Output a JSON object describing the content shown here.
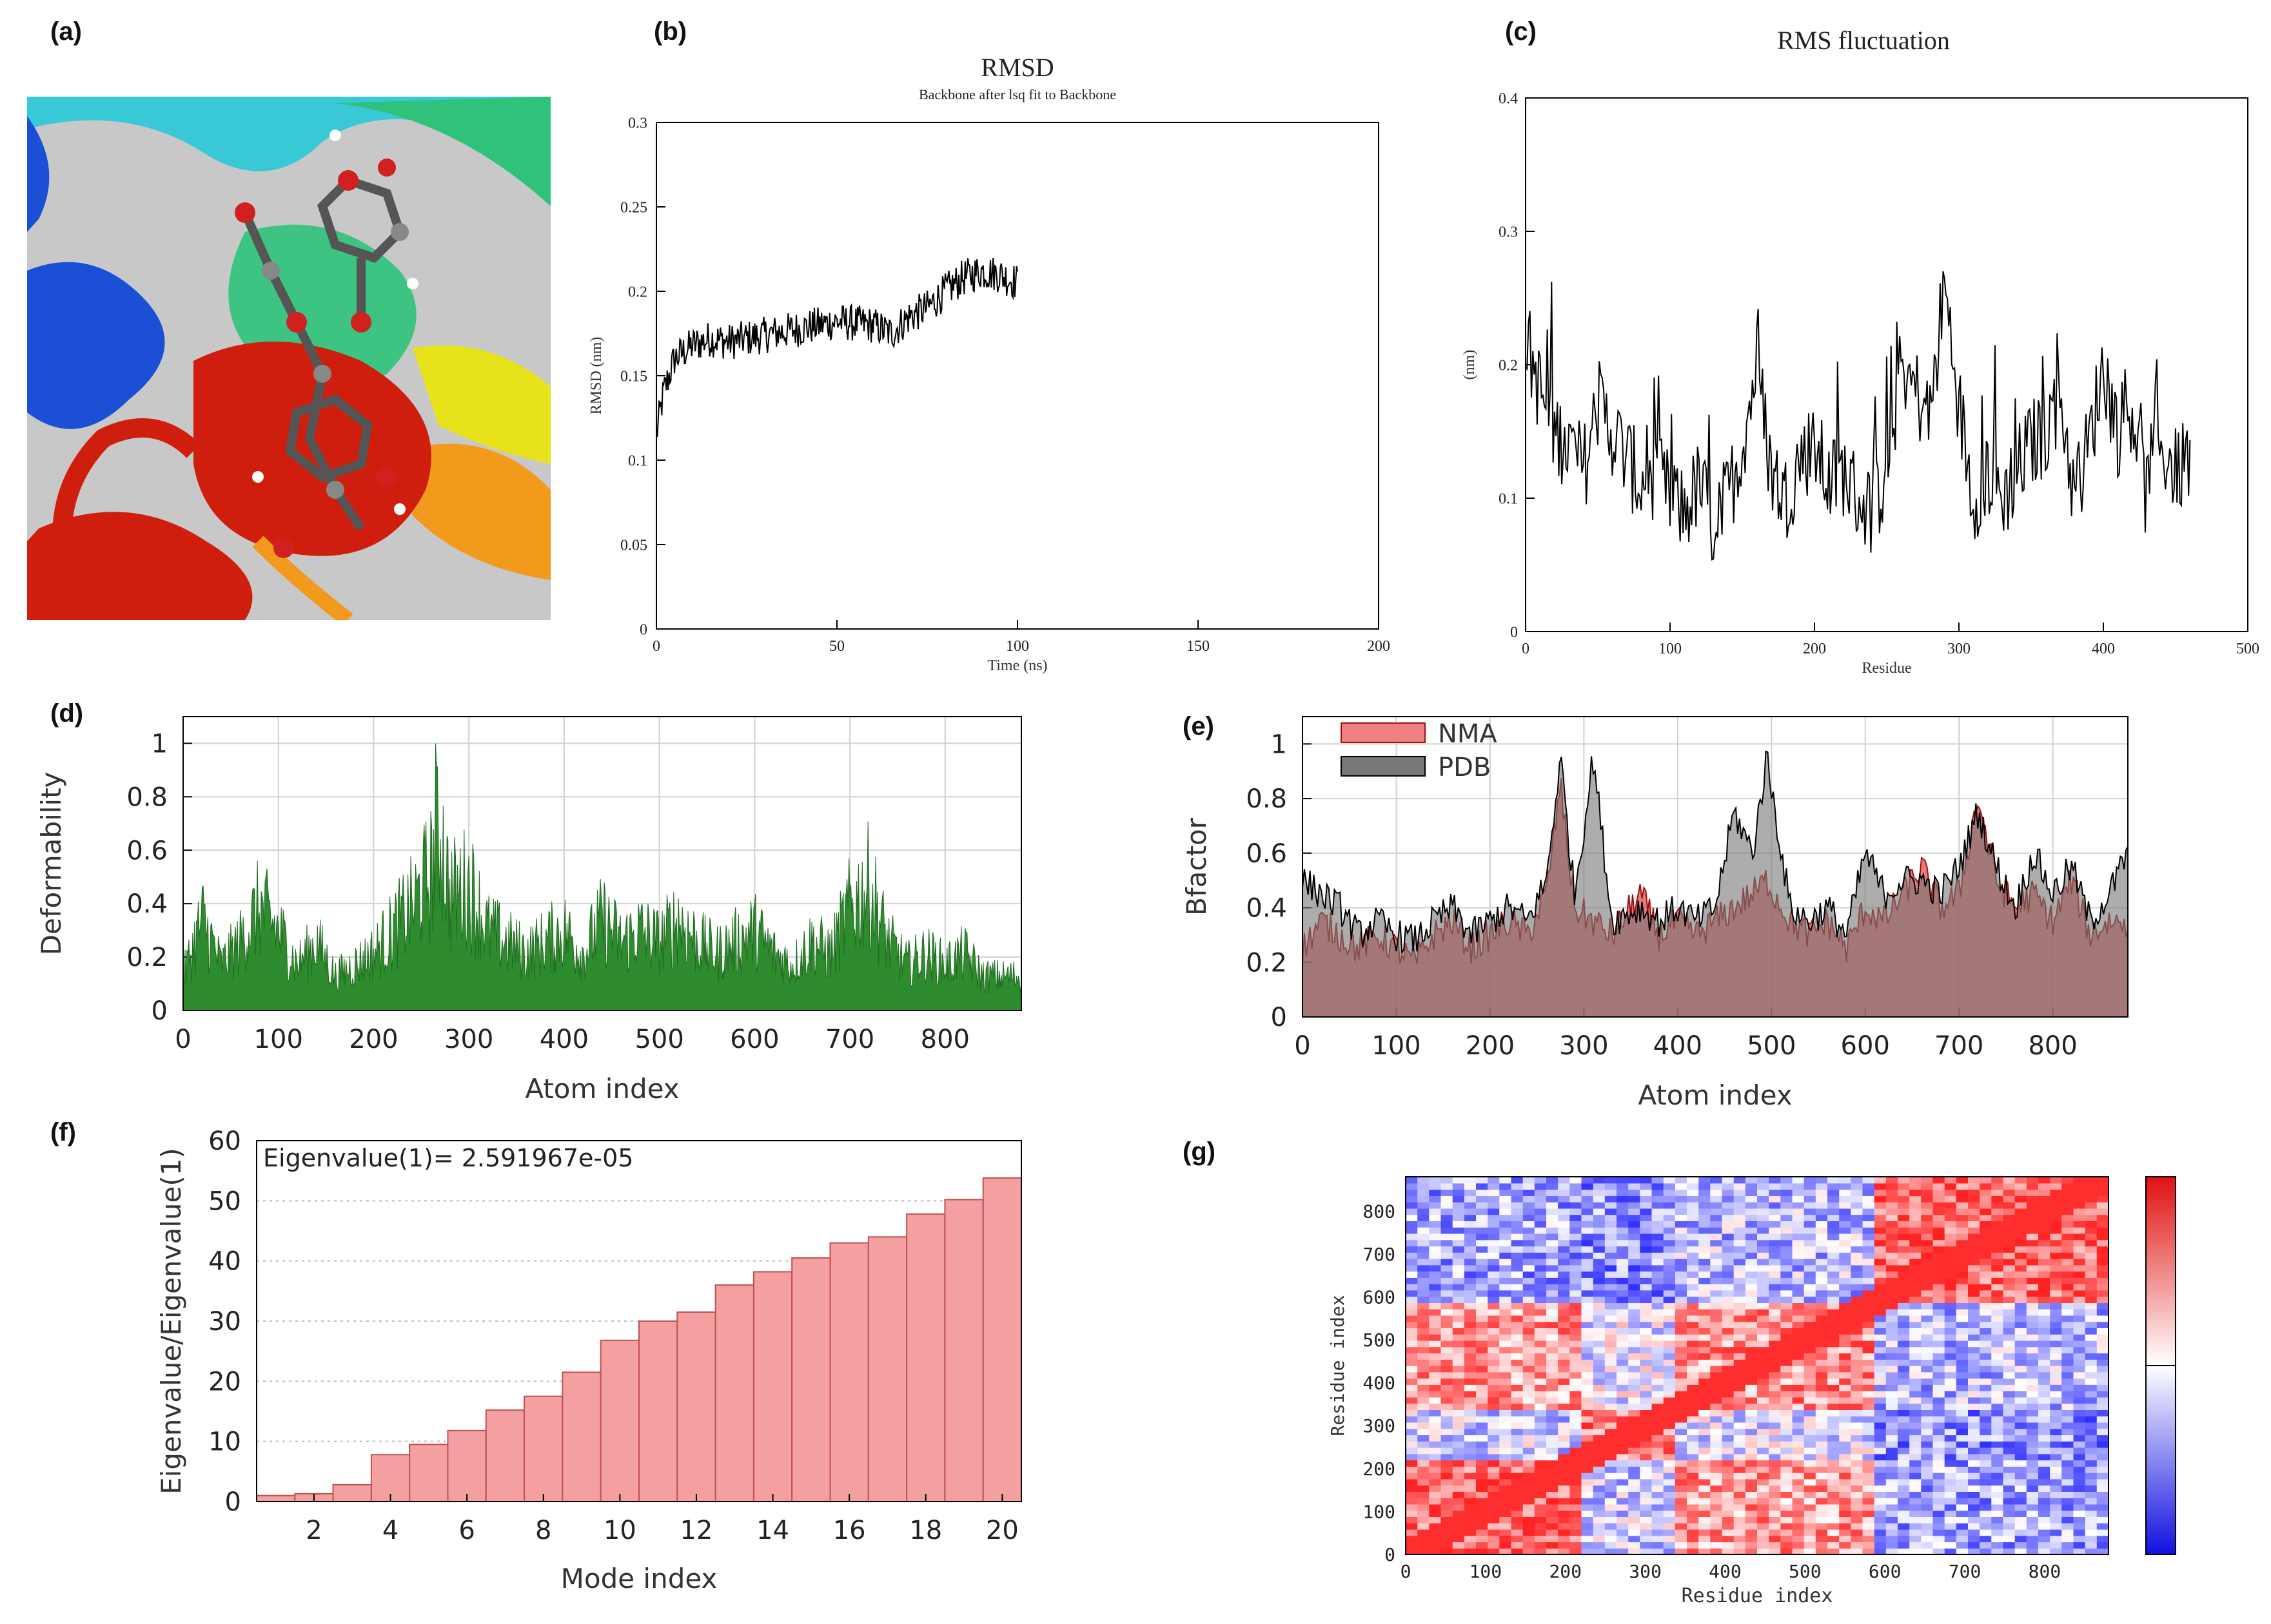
{
  "panel_labels": [
    "(a)",
    "(b)",
    "(c)",
    "(d)",
    "(e)",
    "(f)",
    "(g)"
  ],
  "panel_a": {
    "description_icon": "protein-ligand-docking-render",
    "colors": {
      "background": "#c8c8c8",
      "helix_red": "#d01e0e",
      "sheet_blue": "#1a4fd6",
      "loop_cyan": "#1ec8d8",
      "loop_green": "#2ec27a",
      "yellow": "#e8e21a",
      "orange": "#f29a1c"
    }
  },
  "chart_data": [
    {
      "id": "b",
      "type": "line",
      "title": "RMSD",
      "subtitle": "Backbone after lsq fit to Backbone",
      "xlabel": "Time (ns)",
      "ylabel": "RMSD (nm)",
      "xlim": [
        0,
        200
      ],
      "ylim": [
        0,
        0.3
      ],
      "xticks": [
        "0",
        "50",
        "100",
        "150",
        "200"
      ],
      "yticks": [
        "0",
        "0.05",
        "0.1",
        "0.15",
        "0.2",
        "0.25",
        "0.3"
      ],
      "series": [
        {
          "name": "RMSD",
          "color": "#000000",
          "x": [
            0,
            2,
            5,
            10,
            15,
            20,
            30,
            40,
            50,
            60,
            65,
            70,
            75,
            80,
            85,
            90,
            95,
            100
          ],
          "y": [
            0.115,
            0.14,
            0.16,
            0.168,
            0.172,
            0.17,
            0.174,
            0.178,
            0.182,
            0.18,
            0.175,
            0.185,
            0.19,
            0.2,
            0.208,
            0.212,
            0.21,
            0.205
          ]
        }
      ]
    },
    {
      "id": "c",
      "type": "line",
      "title": "RMS fluctuation",
      "xlabel": "Residue",
      "ylabel": "(nm)",
      "xlim": [
        0,
        500
      ],
      "ylim": [
        0,
        0.4
      ],
      "xticks": [
        "0",
        "100",
        "200",
        "300",
        "400",
        "500"
      ],
      "yticks": [
        "0",
        "0.1",
        "0.2",
        "0.3",
        "0.4"
      ],
      "series": [
        {
          "name": "RMSF",
          "color": "#000000",
          "x": [
            0,
            10,
            20,
            30,
            40,
            50,
            60,
            70,
            80,
            90,
            100,
            110,
            120,
            130,
            140,
            150,
            160,
            170,
            180,
            190,
            200,
            210,
            220,
            230,
            240,
            250,
            260,
            270,
            280,
            290,
            300,
            310,
            320,
            330,
            340,
            350,
            360,
            370,
            380,
            390,
            400,
            410,
            420,
            430,
            440,
            450,
            460
          ],
          "y": [
            0.22,
            0.18,
            0.15,
            0.14,
            0.12,
            0.17,
            0.15,
            0.13,
            0.11,
            0.12,
            0.1,
            0.09,
            0.11,
            0.08,
            0.1,
            0.14,
            0.2,
            0.12,
            0.1,
            0.13,
            0.14,
            0.11,
            0.12,
            0.1,
            0.09,
            0.12,
            0.2,
            0.18,
            0.16,
            0.26,
            0.17,
            0.1,
            0.12,
            0.1,
            0.12,
            0.14,
            0.15,
            0.18,
            0.1,
            0.14,
            0.2,
            0.15,
            0.17,
            0.1,
            0.14,
            0.12,
            0.13
          ]
        }
      ]
    },
    {
      "id": "d",
      "type": "area",
      "xlabel": "Atom index",
      "ylabel": "Deformability",
      "xlim": [
        0,
        880
      ],
      "ylim": [
        0,
        1.1
      ],
      "xticks": [
        "0",
        "100",
        "200",
        "300",
        "400",
        "500",
        "600",
        "700",
        "800"
      ],
      "yticks": [
        "0",
        "0.2",
        "0.4",
        "0.6",
        "0.8",
        "1"
      ],
      "series": [
        {
          "name": "Deformability",
          "color": "#2e8b2e",
          "x": [
            0,
            20,
            40,
            60,
            80,
            100,
            120,
            140,
            160,
            180,
            200,
            220,
            240,
            260,
            270,
            280,
            300,
            320,
            340,
            360,
            380,
            400,
            420,
            440,
            460,
            480,
            500,
            520,
            540,
            560,
            580,
            600,
            620,
            640,
            660,
            680,
            700,
            720,
            740,
            760,
            780,
            800,
            820,
            840,
            860,
            880
          ],
          "y": [
            0.15,
            0.4,
            0.2,
            0.3,
            0.45,
            0.35,
            0.2,
            0.3,
            0.15,
            0.2,
            0.25,
            0.35,
            0.45,
            0.6,
            0.8,
            0.5,
            0.55,
            0.35,
            0.3,
            0.25,
            0.3,
            0.35,
            0.25,
            0.4,
            0.3,
            0.35,
            0.3,
            0.4,
            0.3,
            0.25,
            0.3,
            0.35,
            0.25,
            0.2,
            0.3,
            0.25,
            0.45,
            0.55,
            0.3,
            0.2,
            0.25,
            0.2,
            0.25,
            0.15,
            0.15,
            0.15
          ]
        }
      ]
    },
    {
      "id": "e",
      "type": "area",
      "xlabel": "Atom index",
      "ylabel": "Bfactor",
      "xlim": [
        0,
        880
      ],
      "ylim": [
        0,
        1.1
      ],
      "xticks": [
        "0",
        "100",
        "200",
        "300",
        "400",
        "500",
        "600",
        "700",
        "800"
      ],
      "yticks": [
        "0",
        "0.2",
        "0.4",
        "0.6",
        "0.8",
        "1"
      ],
      "legend": [
        "NMA",
        "PDB"
      ],
      "legend_position": "top-left",
      "series": [
        {
          "name": "NMA",
          "color": "#e05050",
          "x": [
            0,
            20,
            40,
            60,
            80,
            100,
            120,
            140,
            160,
            180,
            200,
            220,
            240,
            260,
            275,
            290,
            310,
            330,
            360,
            380,
            400,
            420,
            440,
            460,
            480,
            495,
            520,
            540,
            560,
            580,
            600,
            620,
            640,
            660,
            680,
            700,
            720,
            740,
            760,
            780,
            800,
            820,
            840,
            860,
            880
          ],
          "y": [
            0.25,
            0.35,
            0.3,
            0.25,
            0.3,
            0.25,
            0.2,
            0.3,
            0.35,
            0.25,
            0.3,
            0.35,
            0.3,
            0.45,
            0.85,
            0.4,
            0.35,
            0.3,
            0.45,
            0.3,
            0.35,
            0.3,
            0.35,
            0.4,
            0.45,
            0.5,
            0.35,
            0.3,
            0.35,
            0.25,
            0.4,
            0.35,
            0.45,
            0.55,
            0.4,
            0.45,
            0.8,
            0.5,
            0.4,
            0.45,
            0.35,
            0.5,
            0.3,
            0.35,
            0.35
          ]
        },
        {
          "name": "PDB",
          "color": "#777777",
          "x": [
            0,
            20,
            40,
            60,
            80,
            100,
            120,
            140,
            160,
            180,
            200,
            220,
            240,
            260,
            275,
            290,
            310,
            330,
            360,
            380,
            400,
            420,
            440,
            460,
            480,
            495,
            520,
            540,
            560,
            580,
            600,
            620,
            640,
            660,
            680,
            700,
            720,
            740,
            760,
            780,
            800,
            820,
            840,
            860,
            880
          ],
          "y": [
            0.5,
            0.45,
            0.4,
            0.3,
            0.35,
            0.3,
            0.28,
            0.35,
            0.4,
            0.3,
            0.35,
            0.4,
            0.35,
            0.5,
            0.95,
            0.45,
            0.95,
            0.35,
            0.4,
            0.35,
            0.4,
            0.35,
            0.4,
            0.75,
            0.6,
            0.95,
            0.4,
            0.35,
            0.4,
            0.3,
            0.6,
            0.45,
            0.5,
            0.5,
            0.45,
            0.55,
            0.75,
            0.55,
            0.4,
            0.6,
            0.45,
            0.55,
            0.35,
            0.45,
            0.6
          ]
        }
      ]
    },
    {
      "id": "f",
      "type": "bar",
      "xlabel": "Mode index",
      "ylabel": "Eigenvalue/Eigenvalue(1)",
      "annotation": "Eigenvalue(1)= 2.591967e-05",
      "ylim": [
        0,
        60
      ],
      "xticks": [
        "2",
        "4",
        "6",
        "8",
        "10",
        "12",
        "14",
        "16",
        "18",
        "20"
      ],
      "yticks": [
        "0",
        "10",
        "20",
        "30",
        "40",
        "50",
        "60"
      ],
      "categories": [
        1,
        2,
        3,
        4,
        5,
        6,
        7,
        8,
        9,
        10,
        11,
        12,
        13,
        14,
        15,
        16,
        17,
        18,
        19,
        20
      ],
      "values": [
        1,
        1.3,
        2.8,
        7.8,
        9.5,
        11.8,
        15.2,
        17.5,
        21.5,
        26.8,
        30,
        31.5,
        36,
        38.2,
        40.5,
        43,
        44,
        47.8,
        50.2,
        53.8
      ],
      "bar_color": "#f4a0a0",
      "edge_color": "#c05050"
    },
    {
      "id": "g",
      "type": "heatmap",
      "xlabel": "Residue index",
      "ylabel": "Residue index",
      "xlim": [
        0,
        880
      ],
      "ylim": [
        0,
        880
      ],
      "xticks": [
        "0",
        "100",
        "200",
        "300",
        "400",
        "500",
        "600",
        "700",
        "800"
      ],
      "yticks": [
        "0",
        "100",
        "200",
        "300",
        "400",
        "500",
        "600",
        "700",
        "800"
      ],
      "colormap": [
        "#1010e0",
        "#ffffff",
        "#e01010"
      ],
      "blocks": [
        {
          "x": [
            0,
            220
          ],
          "y": [
            0,
            220
          ],
          "v": 0.7
        },
        {
          "x": [
            220,
            340
          ],
          "y": [
            220,
            340
          ],
          "v": 0.6
        },
        {
          "x": [
            340,
            580
          ],
          "y": [
            340,
            580
          ],
          "v": 0.5
        },
        {
          "x": [
            580,
            880
          ],
          "y": [
            580,
            880
          ],
          "v": 0.7
        },
        {
          "x": [
            0,
            220
          ],
          "y": [
            340,
            580
          ],
          "v": 0.45
        },
        {
          "x": [
            340,
            580
          ],
          "y": [
            0,
            220
          ],
          "v": 0.45
        },
        {
          "x": [
            0,
            220
          ],
          "y": [
            580,
            880
          ],
          "v": -0.4
        },
        {
          "x": [
            580,
            880
          ],
          "y": [
            0,
            220
          ],
          "v": -0.4
        },
        {
          "x": [
            220,
            340
          ],
          "y": [
            580,
            880
          ],
          "v": -0.5
        },
        {
          "x": [
            580,
            880
          ],
          "y": [
            220,
            340
          ],
          "v": -0.5
        },
        {
          "x": [
            340,
            580
          ],
          "y": [
            580,
            880
          ],
          "v": -0.3
        },
        {
          "x": [
            580,
            880
          ],
          "y": [
            340,
            580
          ],
          "v": -0.3
        },
        {
          "x": [
            0,
            220
          ],
          "y": [
            220,
            340
          ],
          "v": -0.2
        },
        {
          "x": [
            220,
            340
          ],
          "y": [
            0,
            220
          ],
          "v": -0.2
        },
        {
          "x": [
            220,
            340
          ],
          "y": [
            340,
            580
          ],
          "v": -0.1
        },
        {
          "x": [
            340,
            580
          ],
          "y": [
            220,
            340
          ],
          "v": -0.1
        }
      ]
    }
  ]
}
